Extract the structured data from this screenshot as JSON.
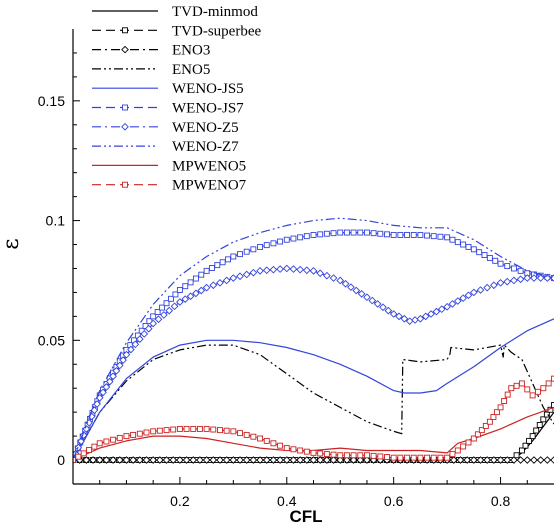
{
  "chart_data": {
    "type": "line",
    "title": "",
    "xlabel": "CFL",
    "ylabel": "ε",
    "xlim": [
      0,
      0.9
    ],
    "ylim": [
      -0.01,
      0.18
    ],
    "xticks": [
      "0.2",
      "0.4",
      "0.6",
      "0.8"
    ],
    "yticks": [
      "0",
      "0.05",
      "0.1",
      "0.15"
    ],
    "grid": false,
    "legend_position": "top-left",
    "series": [
      {
        "name": "TVD-minmod",
        "color": "#000000",
        "dash": "solid",
        "marker": "none",
        "x": [
          0.0,
          0.82,
          0.84,
          0.86,
          0.88,
          0.9
        ],
        "y": [
          0.0,
          0.0,
          0.003,
          0.008,
          0.014,
          0.02
        ]
      },
      {
        "name": "TVD-superbee",
        "color": "#000000",
        "dash": "dash",
        "marker": "square",
        "x": [
          0.0,
          0.82,
          0.84,
          0.86,
          0.88,
          0.9
        ],
        "y": [
          0.0,
          0.0,
          0.004,
          0.01,
          0.017,
          0.023
        ]
      },
      {
        "name": "ENO3",
        "color": "#000000",
        "dash": "dashdot",
        "marker": "diamond",
        "x": [
          0.0,
          0.1,
          0.2,
          0.3,
          0.4,
          0.5,
          0.6,
          0.7,
          0.8,
          0.9
        ],
        "y": [
          0.0,
          0.0,
          0.0,
          0.0,
          0.0,
          0.0,
          0.0,
          0.0,
          0.0,
          0.0
        ]
      },
      {
        "name": "ENO5",
        "color": "#000000",
        "dash": "dashdotdot",
        "marker": "none",
        "x": [
          0.0,
          0.05,
          0.1,
          0.15,
          0.2,
          0.25,
          0.3,
          0.35,
          0.4,
          0.45,
          0.5,
          0.55,
          0.6,
          0.615,
          0.617,
          0.65,
          0.7,
          0.705,
          0.707,
          0.75,
          0.8,
          0.805,
          0.807,
          0.82,
          0.84,
          0.86,
          0.88,
          0.9
        ],
        "y": [
          0.0,
          0.02,
          0.033,
          0.042,
          0.046,
          0.048,
          0.048,
          0.044,
          0.036,
          0.028,
          0.022,
          0.016,
          0.012,
          0.011,
          0.042,
          0.041,
          0.042,
          0.044,
          0.047,
          0.046,
          0.048,
          0.043,
          0.048,
          0.045,
          0.042,
          0.032,
          0.022,
          0.015
        ]
      },
      {
        "name": "WENO-JS5",
        "color": "#3344dd",
        "dash": "solid",
        "marker": "none",
        "x": [
          0.0,
          0.05,
          0.1,
          0.15,
          0.2,
          0.25,
          0.3,
          0.35,
          0.4,
          0.45,
          0.5,
          0.55,
          0.6,
          0.62,
          0.65,
          0.68,
          0.7,
          0.75,
          0.8,
          0.85,
          0.9
        ],
        "y": [
          0.0,
          0.02,
          0.034,
          0.043,
          0.048,
          0.05,
          0.05,
          0.049,
          0.047,
          0.044,
          0.04,
          0.035,
          0.029,
          0.028,
          0.028,
          0.029,
          0.032,
          0.039,
          0.047,
          0.054,
          0.059
        ]
      },
      {
        "name": "WENO-JS7",
        "color": "#3344dd",
        "dash": "dash",
        "marker": "square",
        "x": [
          0.0,
          0.05,
          0.1,
          0.15,
          0.2,
          0.25,
          0.3,
          0.35,
          0.4,
          0.45,
          0.5,
          0.55,
          0.6,
          0.65,
          0.7,
          0.75,
          0.8,
          0.85,
          0.9
        ],
        "y": [
          0.0,
          0.027,
          0.046,
          0.06,
          0.071,
          0.079,
          0.085,
          0.089,
          0.092,
          0.094,
          0.095,
          0.095,
          0.094,
          0.094,
          0.093,
          0.088,
          0.082,
          0.078,
          0.076
        ]
      },
      {
        "name": "WENO-Z5",
        "color": "#3344dd",
        "dash": "dashdot",
        "marker": "diamond",
        "x": [
          0.0,
          0.05,
          0.1,
          0.15,
          0.2,
          0.25,
          0.3,
          0.35,
          0.4,
          0.45,
          0.5,
          0.55,
          0.6,
          0.63,
          0.65,
          0.7,
          0.75,
          0.8,
          0.85,
          0.9
        ],
        "y": [
          0.0,
          0.026,
          0.044,
          0.057,
          0.066,
          0.072,
          0.076,
          0.079,
          0.08,
          0.079,
          0.075,
          0.068,
          0.061,
          0.058,
          0.059,
          0.064,
          0.07,
          0.074,
          0.076,
          0.076
        ]
      },
      {
        "name": "WENO-Z7",
        "color": "#3344dd",
        "dash": "dashdotdot",
        "marker": "none",
        "x": [
          0.0,
          0.05,
          0.1,
          0.15,
          0.2,
          0.25,
          0.3,
          0.35,
          0.4,
          0.45,
          0.5,
          0.55,
          0.6,
          0.65,
          0.7,
          0.75,
          0.8,
          0.85,
          0.9
        ],
        "y": [
          0.0,
          0.029,
          0.049,
          0.065,
          0.077,
          0.085,
          0.091,
          0.095,
          0.098,
          0.1,
          0.101,
          0.1,
          0.098,
          0.097,
          0.097,
          0.092,
          0.085,
          0.079,
          0.076
        ]
      },
      {
        "name": "MPWENO5",
        "color": "#cc2222",
        "dash": "solid",
        "marker": "none",
        "x": [
          0.0,
          0.05,
          0.1,
          0.15,
          0.2,
          0.25,
          0.3,
          0.35,
          0.4,
          0.45,
          0.5,
          0.55,
          0.6,
          0.65,
          0.7,
          0.72,
          0.75,
          0.8,
          0.85,
          0.9
        ],
        "y": [
          0.0,
          0.005,
          0.008,
          0.01,
          0.01,
          0.009,
          0.007,
          0.005,
          0.004,
          0.004,
          0.005,
          0.004,
          0.004,
          0.004,
          0.003,
          0.007,
          0.009,
          0.013,
          0.018,
          0.022
        ]
      },
      {
        "name": "MPWENO7",
        "color": "#cc2222",
        "dash": "dash",
        "marker": "square",
        "x": [
          0.0,
          0.05,
          0.1,
          0.15,
          0.2,
          0.25,
          0.3,
          0.35,
          0.4,
          0.45,
          0.5,
          0.55,
          0.6,
          0.65,
          0.7,
          0.72,
          0.75,
          0.78,
          0.8,
          0.82,
          0.84,
          0.86,
          0.88,
          0.9
        ],
        "y": [
          0.0,
          0.007,
          0.01,
          0.012,
          0.013,
          0.013,
          0.012,
          0.009,
          0.005,
          0.003,
          0.002,
          0.002,
          0.001,
          0.001,
          0.001,
          0.004,
          0.009,
          0.016,
          0.022,
          0.03,
          0.032,
          0.027,
          0.03,
          0.034
        ]
      }
    ]
  }
}
